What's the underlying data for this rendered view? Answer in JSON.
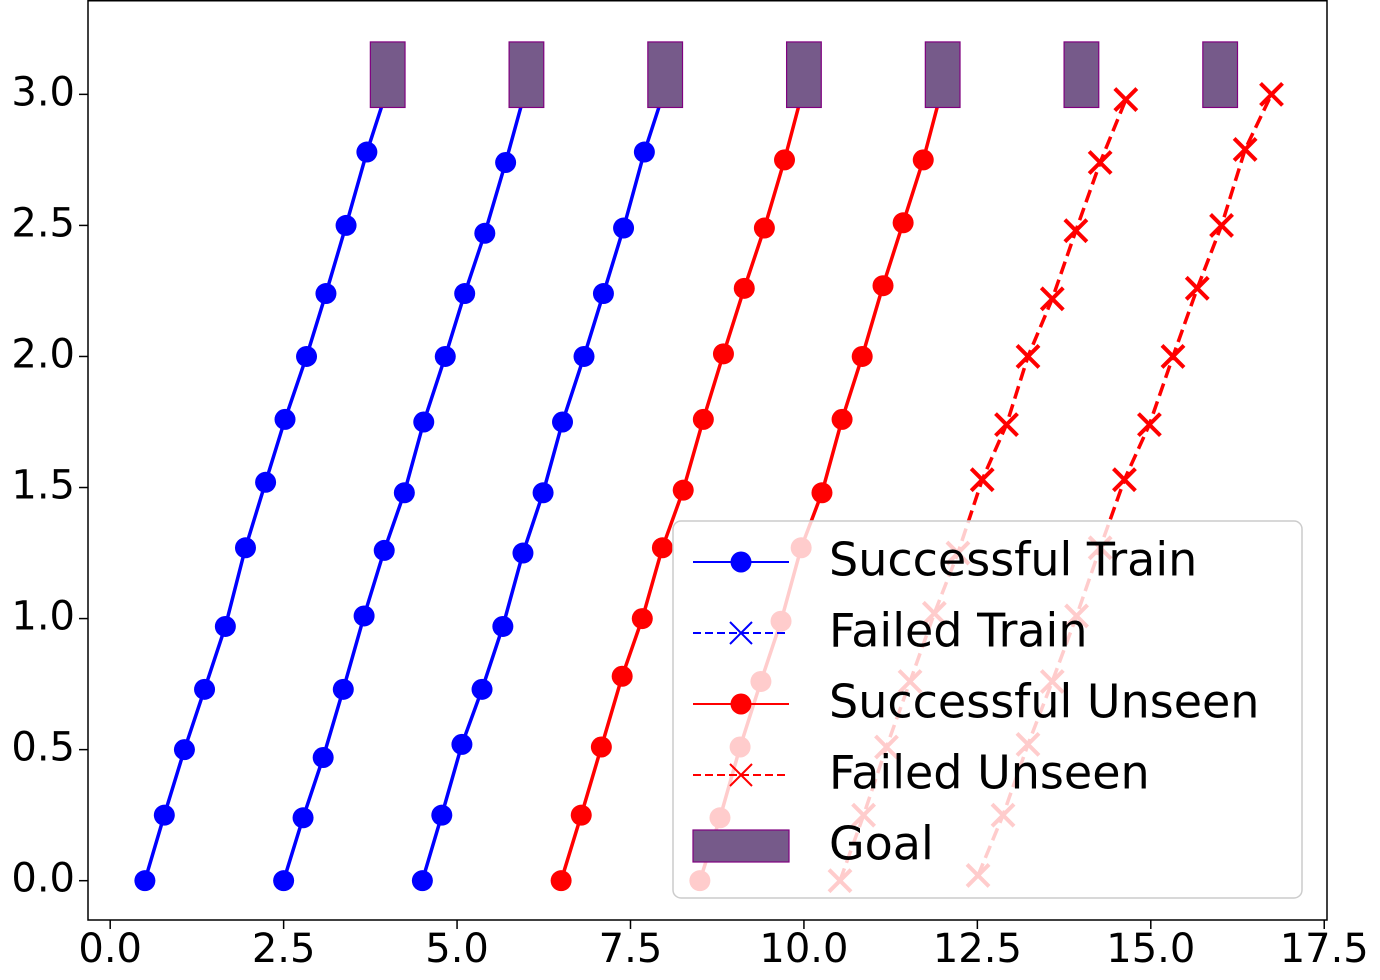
{
  "chart_data": {
    "type": "line",
    "xlim": [
      -0.32,
      17.54
    ],
    "ylim": [
      -0.15,
      3.36
    ],
    "xticks": [
      {
        "value": 0,
        "label": "0.0"
      },
      {
        "value": 2.5,
        "label": "2.5"
      },
      {
        "value": 5,
        "label": "5.0"
      },
      {
        "value": 7.5,
        "label": "7.5"
      },
      {
        "value": 10,
        "label": "10.0"
      },
      {
        "value": 12.5,
        "label": "12.5"
      },
      {
        "value": 15,
        "label": "15.0"
      },
      {
        "value": 17.5,
        "label": "17.5"
      }
    ],
    "yticks": [
      {
        "value": 0,
        "label": "0.0"
      },
      {
        "value": 0.5,
        "label": "0.5"
      },
      {
        "value": 1,
        "label": "1.0"
      },
      {
        "value": 1.5,
        "label": "1.5"
      },
      {
        "value": 2,
        "label": "2.0"
      },
      {
        "value": 2.5,
        "label": "2.5"
      },
      {
        "value": 3,
        "label": "3.0"
      }
    ],
    "legend_position": "lower right",
    "series": [
      {
        "name": "Successful Train",
        "color": "#0000ff",
        "linestyle": "solid",
        "marker": "o",
        "lines": [
          {
            "x": [
              0.5,
              0.78,
              1.07,
              1.36,
              1.66,
              1.95,
              2.24,
              2.52,
              2.83,
              3.11,
              3.4,
              3.7,
              3.97
            ],
            "values": [
              0,
              0.25,
              0.5,
              0.73,
              0.97,
              1.27,
              1.52,
              1.76,
              2.0,
              2.24,
              2.5,
              2.78,
              3.0
            ]
          },
          {
            "x": [
              2.5,
              2.78,
              3.07,
              3.36,
              3.66,
              3.95,
              4.24,
              4.52,
              4.83,
              5.11,
              5.4,
              5.7,
              5.97
            ],
            "values": [
              0,
              0.24,
              0.47,
              0.73,
              1.01,
              1.26,
              1.48,
              1.75,
              2.0,
              2.24,
              2.47,
              2.74,
              3.0
            ]
          },
          {
            "x": [
              4.5,
              4.78,
              5.07,
              5.36,
              5.66,
              5.95,
              6.24,
              6.52,
              6.83,
              7.11,
              7.4,
              7.7,
              7.97
            ],
            "values": [
              0,
              0.25,
              0.52,
              0.73,
              0.97,
              1.25,
              1.48,
              1.75,
              2.0,
              2.24,
              2.49,
              2.78,
              3.0
            ]
          }
        ]
      },
      {
        "name": "Failed Train",
        "color": "#0000ff",
        "linestyle": "dashed",
        "marker": "x",
        "lines": []
      },
      {
        "name": "Successful Unseen",
        "color": "#ff0000",
        "linestyle": "solid",
        "marker": "o",
        "lines": [
          {
            "x": [
              6.5,
              6.79,
              7.08,
              7.38,
              7.67,
              7.96,
              8.26,
              8.55,
              8.84,
              9.14,
              9.43,
              9.72,
              9.97
            ],
            "values": [
              0,
              0.25,
              0.51,
              0.78,
              1.0,
              1.27,
              1.49,
              1.76,
              2.01,
              2.26,
              2.49,
              2.75,
              3.0
            ]
          },
          {
            "x": [
              8.5,
              8.79,
              9.08,
              9.38,
              9.67,
              9.96,
              10.26,
              10.55,
              10.84,
              11.14,
              11.43,
              11.72,
              11.97
            ],
            "values": [
              0,
              0.24,
              0.51,
              0.76,
              0.99,
              1.27,
              1.48,
              1.76,
              2.0,
              2.27,
              2.51,
              2.75,
              3.0
            ]
          }
        ]
      },
      {
        "name": "Failed Unseen",
        "color": "#ff0000",
        "linestyle": "dashed",
        "marker": "x",
        "lines": [
          {
            "x": [
              10.52,
              10.86,
              11.19,
              11.53,
              11.88,
              12.22,
              12.57,
              12.92,
              13.23,
              13.58,
              13.92,
              14.27,
              14.64
            ],
            "values": [
              0,
              0.25,
              0.51,
              0.76,
              1.02,
              1.25,
              1.53,
              1.74,
              2.0,
              2.22,
              2.48,
              2.74,
              2.98
            ]
          },
          {
            "x": [
              12.51,
              12.87,
              13.23,
              13.58,
              13.93,
              14.27,
              14.62,
              14.98,
              15.32,
              15.67,
              16.02,
              16.36,
              16.74
            ],
            "values": [
              0.02,
              0.25,
              0.52,
              0.76,
              1.01,
              1.27,
              1.53,
              1.74,
              2.0,
              2.26,
              2.5,
              2.79,
              3.0
            ]
          }
        ]
      }
    ],
    "goal": {
      "name": "Goal",
      "color": "#765a8a",
      "edgecolor": "#800080",
      "rects": [
        {
          "x": [
            3.75,
            4.25
          ],
          "y": [
            2.95,
            3.2
          ]
        },
        {
          "x": [
            5.75,
            6.25
          ],
          "y": [
            2.95,
            3.2
          ]
        },
        {
          "x": [
            7.75,
            8.25
          ],
          "y": [
            2.95,
            3.2
          ]
        },
        {
          "x": [
            9.75,
            10.25
          ],
          "y": [
            2.95,
            3.2
          ]
        },
        {
          "x": [
            11.75,
            12.25
          ],
          "y": [
            2.95,
            3.2
          ]
        },
        {
          "x": [
            13.75,
            14.25
          ],
          "y": [
            2.95,
            3.2
          ]
        },
        {
          "x": [
            15.75,
            16.25
          ],
          "y": [
            2.95,
            3.2
          ]
        }
      ]
    }
  }
}
